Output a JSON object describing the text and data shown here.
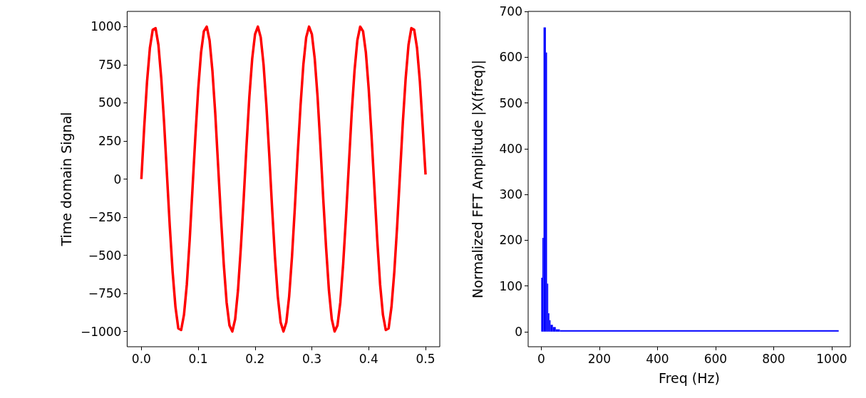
{
  "chart_data": [
    {
      "type": "line",
      "ylabel": "Time domain Signal",
      "x": [
        0,
        0.005,
        0.01,
        0.015,
        0.02,
        0.025,
        0.03,
        0.035,
        0.04,
        0.045,
        0.05,
        0.055,
        0.06,
        0.065,
        0.07,
        0.075,
        0.08,
        0.085,
        0.09,
        0.095,
        0.1,
        0.105,
        0.11,
        0.115,
        0.12,
        0.125,
        0.13,
        0.135,
        0.14,
        0.145,
        0.15,
        0.155,
        0.16,
        0.165,
        0.17,
        0.175,
        0.18,
        0.185,
        0.19,
        0.195,
        0.2,
        0.205,
        0.21,
        0.215,
        0.22,
        0.225,
        0.23,
        0.235,
        0.24,
        0.245,
        0.25,
        0.255,
        0.26,
        0.265,
        0.27,
        0.275,
        0.28,
        0.285,
        0.29,
        0.295,
        0.3,
        0.305,
        0.31,
        0.315,
        0.32,
        0.325,
        0.33,
        0.335,
        0.34,
        0.345,
        0.35,
        0.355,
        0.36,
        0.365,
        0.37,
        0.375,
        0.38,
        0.385,
        0.39,
        0.395,
        0.4,
        0.405,
        0.41,
        0.415,
        0.42,
        0.425,
        0.43,
        0.435,
        0.44,
        0.445,
        0.45,
        0.455,
        0.46,
        0.465,
        0.47,
        0.475,
        0.48,
        0.485,
        0.49,
        0.495,
        0.5
      ],
      "series": [
        {
          "color": "#ff0000",
          "values": [
            0,
            340,
            640,
            860,
            980,
            990,
            880,
            660,
            370,
            30,
            -310,
            -610,
            -840,
            -980,
            -990,
            -890,
            -690,
            -400,
            -60,
            280,
            590,
            830,
            970,
            1000,
            910,
            710,
            430,
            90,
            -250,
            -560,
            -810,
            -960,
            -1000,
            -920,
            -730,
            -450,
            -130,
            220,
            540,
            790,
            950,
            1000,
            930,
            750,
            480,
            160,
            -190,
            -510,
            -770,
            -940,
            -1000,
            -940,
            -770,
            -510,
            -190,
            160,
            480,
            750,
            930,
            1000,
            950,
            790,
            540,
            220,
            -130,
            -450,
            -730,
            -920,
            -1000,
            -960,
            -810,
            -560,
            -250,
            90,
            430,
            710,
            910,
            1000,
            970,
            830,
            590,
            280,
            -60,
            -400,
            -690,
            -890,
            -990,
            -980,
            -840,
            -610,
            -310,
            30,
            370,
            660,
            880,
            990,
            980,
            860,
            640,
            340,
            30
          ]
        }
      ],
      "xlim": [
        -0.025,
        0.525
      ],
      "xticks": [
        {
          "value": 0,
          "label": "0.0"
        },
        {
          "value": 0.1,
          "label": "0.1"
        },
        {
          "value": 0.2,
          "label": "0.2"
        },
        {
          "value": 0.3,
          "label": "0.3"
        },
        {
          "value": 0.4,
          "label": "0.4"
        },
        {
          "value": 0.5,
          "label": "0.5"
        }
      ],
      "ylim": [
        -1100,
        1100
      ],
      "yticks": [
        {
          "value": -1000,
          "label": "−1000"
        },
        {
          "value": -750,
          "label": "−750"
        },
        {
          "value": -500,
          "label": "−500"
        },
        {
          "value": -250,
          "label": "−250"
        },
        0,
        250,
        500,
        750,
        1000
      ]
    },
    {
      "type": "histogram",
      "xlabel": "Freq (Hz)",
      "ylabel": "Normalized FFT Amplitude |X(freq)|",
      "color": "#0000ff",
      "bins": [
        0,
        4,
        8,
        16,
        20,
        24,
        28,
        32,
        40,
        50,
        64,
        1024
      ],
      "values": [
        118,
        205,
        665,
        610,
        105,
        40,
        25,
        15,
        10,
        5,
        3
      ],
      "xlim": [
        -45,
        1064
      ],
      "xticks": [
        0,
        200,
        400,
        600,
        800,
        1000
      ],
      "ylim": [
        -33,
        700
      ],
      "yticks": [
        0,
        100,
        200,
        300,
        400,
        500,
        600,
        700
      ]
    }
  ]
}
